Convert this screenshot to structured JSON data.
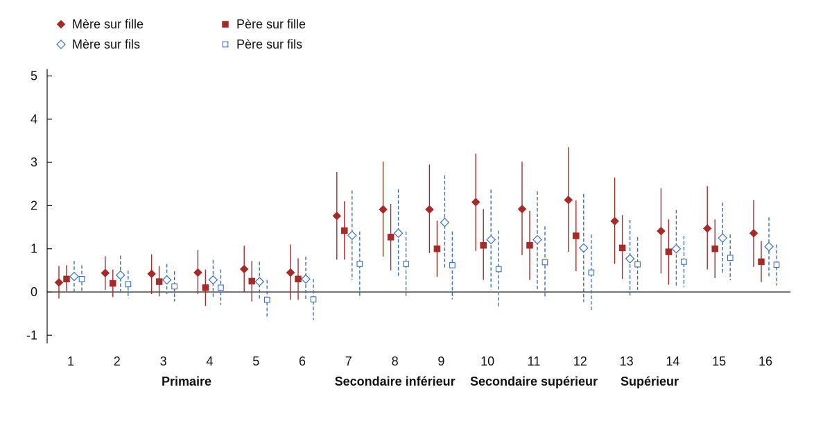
{
  "chart_data": {
    "type": "scatter",
    "title": "",
    "xlabel": "",
    "ylabel": "",
    "ylim": [
      -1,
      5
    ],
    "yticks": [
      -1,
      0,
      1,
      2,
      3,
      4,
      5
    ],
    "categories": [
      "1",
      "2",
      "3",
      "4",
      "5",
      "6",
      "7",
      "8",
      "9",
      "10",
      "11",
      "12",
      "13",
      "14",
      "15",
      "16"
    ],
    "group_labels": [
      {
        "label": "Primaire",
        "center": 3.5
      },
      {
        "label": "Secondaire inférieur",
        "center": 8
      },
      {
        "label": "Secondaire supérieur",
        "center": 11
      },
      {
        "label": "Supérieur",
        "center": 13.5
      }
    ],
    "legend_position": "top-left",
    "series": [
      {
        "name": "Mère sur fille",
        "marker": "diamond-filled",
        "color": "#a52a2a",
        "line": "solid",
        "values": [
          0.22,
          0.44,
          0.42,
          0.45,
          0.53,
          0.45,
          1.76,
          1.91,
          1.91,
          2.08,
          1.92,
          2.13,
          1.64,
          1.41,
          1.47,
          1.36
        ],
        "lower": [
          -0.15,
          0.05,
          -0.05,
          -0.05,
          0.0,
          -0.18,
          0.75,
          0.82,
          0.9,
          0.95,
          0.85,
          0.93,
          0.65,
          0.43,
          0.52,
          0.58
        ],
        "upper": [
          0.6,
          0.83,
          0.87,
          0.97,
          1.07,
          1.1,
          2.78,
          3.02,
          2.95,
          3.2,
          3.02,
          3.35,
          2.65,
          2.4,
          2.45,
          2.13
        ]
      },
      {
        "name": "Père sur fille",
        "marker": "square-filled",
        "color": "#a52a2a",
        "line": "solid",
        "values": [
          0.3,
          0.2,
          0.24,
          0.1,
          0.25,
          0.3,
          1.42,
          1.27,
          1.0,
          1.08,
          1.08,
          1.3,
          1.02,
          0.93,
          1.0,
          0.7
        ],
        "lower": [
          0.02,
          -0.12,
          -0.1,
          -0.32,
          -0.22,
          -0.18,
          0.75,
          0.5,
          0.35,
          0.28,
          0.28,
          0.48,
          0.3,
          0.17,
          0.32,
          0.23
        ],
        "upper": [
          0.62,
          0.52,
          0.6,
          0.52,
          0.72,
          0.78,
          2.1,
          2.04,
          1.65,
          1.92,
          1.88,
          2.12,
          1.78,
          1.68,
          1.68,
          1.18
        ]
      },
      {
        "name": "Mère sur fils",
        "marker": "diamond-open",
        "color": "#3a6fc0",
        "line": "dashed",
        "values": [
          0.36,
          0.39,
          0.28,
          0.28,
          0.24,
          0.3,
          1.31,
          1.36,
          1.61,
          1.21,
          1.21,
          1.02,
          0.77,
          1.0,
          1.25,
          1.05
        ],
        "lower": [
          0.0,
          0.0,
          -0.05,
          -0.12,
          -0.18,
          -0.18,
          0.27,
          0.33,
          0.55,
          0.05,
          0.05,
          -0.23,
          -0.12,
          0.12,
          0.42,
          0.36
        ],
        "upper": [
          0.72,
          0.84,
          0.65,
          0.74,
          0.7,
          0.82,
          2.35,
          2.38,
          2.7,
          2.37,
          2.33,
          2.27,
          1.67,
          1.9,
          2.07,
          1.73
        ]
      },
      {
        "name": "Père sur fils",
        "marker": "square-open",
        "color": "#3a6fc0",
        "line": "dashed",
        "values": [
          0.3,
          0.18,
          0.13,
          0.1,
          -0.18,
          -0.17,
          0.65,
          0.65,
          0.62,
          0.53,
          0.69,
          0.45,
          0.64,
          0.7,
          0.79,
          0.63
        ],
        "lower": [
          -0.02,
          -0.15,
          -0.22,
          -0.3,
          -0.62,
          -0.65,
          -0.1,
          -0.13,
          -0.17,
          -0.35,
          -0.1,
          -0.42,
          0.05,
          0.12,
          0.27,
          0.15
        ],
        "upper": [
          0.62,
          0.5,
          0.48,
          0.52,
          0.28,
          0.3,
          1.4,
          1.4,
          1.4,
          1.42,
          1.52,
          1.33,
          1.27,
          1.3,
          1.33,
          1.1
        ]
      }
    ]
  }
}
